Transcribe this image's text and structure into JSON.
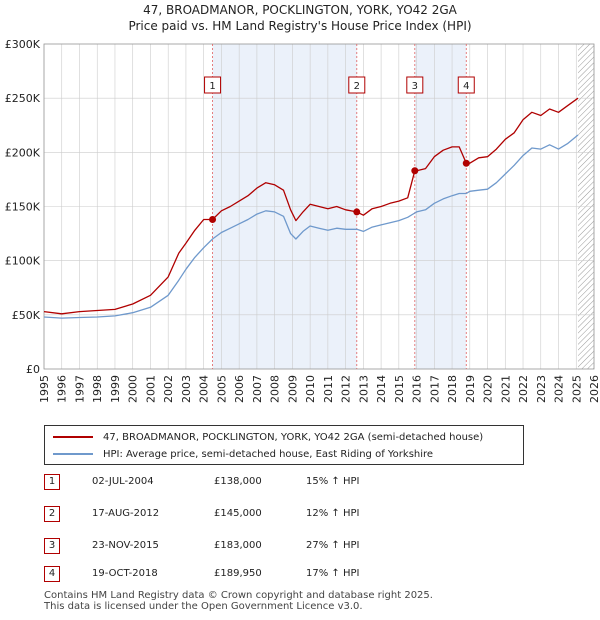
{
  "colors": {
    "property": "#b00000",
    "hpi": "#6f99cc",
    "shade": "#dde7f7",
    "grid": "#cccccc",
    "future_hatch": "#999999"
  },
  "chart_data": {
    "type": "line",
    "title": "47, BROADMANOR, POCKLINGTON, YORK, YO42 2GA",
    "subtitle": "Price paid vs. HM Land Registry's House Price Index (HPI)",
    "xlabel": "",
    "ylabel": "",
    "xlim": [
      1995,
      2026
    ],
    "ylim": [
      0,
      300000
    ],
    "y_ticks": [
      0,
      50000,
      100000,
      150000,
      200000,
      250000,
      300000
    ],
    "y_tick_labels": [
      "£0",
      "£50K",
      "£100K",
      "£150K",
      "£200K",
      "£250K",
      "£300K"
    ],
    "x_ticks": [
      1995,
      1996,
      1997,
      1998,
      1999,
      2000,
      2001,
      2002,
      2003,
      2004,
      2005,
      2006,
      2007,
      2008,
      2009,
      2010,
      2011,
      2012,
      2013,
      2014,
      2015,
      2016,
      2017,
      2018,
      2019,
      2020,
      2021,
      2022,
      2023,
      2024,
      2025,
      2026
    ],
    "grid": true,
    "shaded_periods": [
      [
        2004.5,
        2012.63
      ],
      [
        2015.9,
        2018.8
      ]
    ],
    "future_from": 2025.1,
    "series": [
      {
        "name": "47, BROADMANOR, POCKLINGTON, YORK, YO42 2GA (semi-detached house)",
        "color": "#b00000",
        "x": [
          1995,
          1996,
          1997,
          1998,
          1999,
          2000,
          2001,
          2002,
          2002.6,
          2003,
          2003.5,
          2004,
          2004.5,
          2005,
          2005.5,
          2006,
          2006.5,
          2007,
          2007.5,
          2008,
          2008.5,
          2008.9,
          2009.2,
          2009.6,
          2010,
          2010.5,
          2011,
          2011.5,
          2012,
          2012.63,
          2013,
          2013.5,
          2014,
          2014.5,
          2015,
          2015.5,
          2015.9,
          2016,
          2016.5,
          2017,
          2017.5,
          2018,
          2018.4,
          2018.8,
          2019,
          2019.5,
          2020,
          2020.5,
          2021,
          2021.5,
          2022,
          2022.5,
          2023,
          2023.5,
          2024,
          2024.5,
          2025.1
        ],
        "y": [
          53000,
          51000,
          53000,
          54000,
          55000,
          60000,
          68000,
          85000,
          107000,
          116000,
          128000,
          138000,
          138000,
          146000,
          150000,
          155000,
          160000,
          167000,
          172000,
          170000,
          165000,
          147000,
          137000,
          145000,
          152000,
          150000,
          148000,
          150000,
          147000,
          145000,
          142000,
          148000,
          150000,
          153000,
          155000,
          158000,
          183000,
          183000,
          185000,
          196000,
          202000,
          205000,
          205000,
          189950,
          190000,
          195000,
          196000,
          203000,
          212000,
          218000,
          230000,
          237000,
          234000,
          240000,
          237000,
          243000,
          250000
        ]
      },
      {
        "name": "HPI: Average price, semi-detached house, East Riding of Yorkshire",
        "color": "#6f99cc",
        "x": [
          1995,
          1996,
          1997,
          1998,
          1999,
          2000,
          2001,
          2002,
          2002.6,
          2003,
          2003.5,
          2004,
          2004.5,
          2005,
          2005.5,
          2006,
          2006.5,
          2007,
          2007.5,
          2008,
          2008.5,
          2008.9,
          2009.2,
          2009.6,
          2010,
          2010.5,
          2011,
          2011.5,
          2012,
          2012.63,
          2013,
          2013.5,
          2014,
          2014.5,
          2015,
          2015.5,
          2015.9,
          2016,
          2016.5,
          2017,
          2017.5,
          2018,
          2018.4,
          2018.8,
          2019,
          2019.5,
          2020,
          2020.5,
          2021,
          2021.5,
          2022,
          2022.5,
          2023,
          2023.5,
          2024,
          2024.5,
          2025.1
        ],
        "y": [
          48000,
          47000,
          47500,
          48000,
          49000,
          52000,
          57000,
          68000,
          82000,
          92000,
          103000,
          112000,
          120000,
          126000,
          130000,
          134000,
          138000,
          143000,
          146000,
          145000,
          141000,
          125000,
          120000,
          127000,
          132000,
          130000,
          128000,
          130000,
          129000,
          129000,
          127000,
          131000,
          133000,
          135000,
          137000,
          140000,
          144000,
          145000,
          147000,
          153000,
          157000,
          160000,
          162000,
          162000,
          164000,
          165000,
          166000,
          172000,
          180000,
          188000,
          197000,
          204000,
          203000,
          207000,
          203000,
          208000,
          216000
        ]
      }
    ],
    "sale_markers": [
      {
        "label": "1",
        "x": 2004.5,
        "y": 138000
      },
      {
        "label": "2",
        "x": 2012.63,
        "y": 145000
      },
      {
        "label": "3",
        "x": 2015.9,
        "y": 183000
      },
      {
        "label": "4",
        "x": 2018.8,
        "y": 189950
      }
    ]
  },
  "legend": {
    "property_label": "47, BROADMANOR, POCKLINGTON, YORK, YO42 2GA (semi-detached house)",
    "hpi_label": "HPI: Average price, semi-detached house, East Riding of Yorkshire"
  },
  "sales": [
    {
      "num": "1",
      "date": "02-JUL-2004",
      "price": "£138,000",
      "hpi": "15% ↑ HPI"
    },
    {
      "num": "2",
      "date": "17-AUG-2012",
      "price": "£145,000",
      "hpi": "12% ↑ HPI"
    },
    {
      "num": "3",
      "date": "23-NOV-2015",
      "price": "£183,000",
      "hpi": "27% ↑ HPI"
    },
    {
      "num": "4",
      "date": "19-OCT-2018",
      "price": "£189,950",
      "hpi": "17% ↑ HPI"
    }
  ],
  "footer": {
    "line1": "Contains HM Land Registry data © Crown copyright and database right 2025.",
    "line2": "This data is licensed under the Open Government Licence v3.0."
  }
}
